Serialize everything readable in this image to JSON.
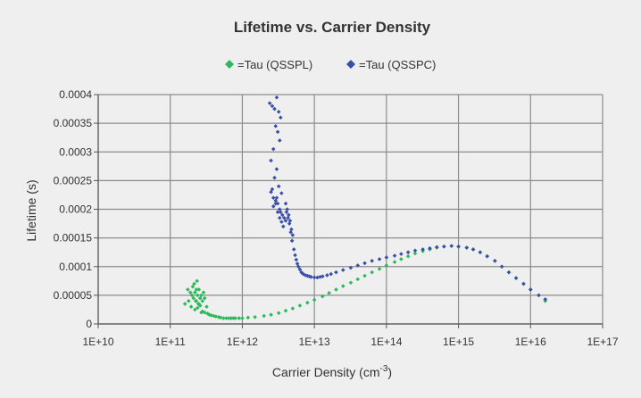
{
  "chart_data": {
    "type": "scatter",
    "title": "Lifetime vs. Carrier Density",
    "xlabel": "Carrier Density (cm",
    "xlabel_sup": "-3",
    "xlabel_close": ")",
    "ylabel": "Lifetime (s)",
    "xscale": "log",
    "xlim": [
      10000000000.0,
      1e+17
    ],
    "ylim": [
      0,
      0.0004
    ],
    "grid": true,
    "legend_placement": "top-center",
    "x_tick_labels": [
      "1E+10",
      "1E+11",
      "1E+12",
      "1E+13",
      "1E+14",
      "1E+15",
      "1E+16",
      "1E+17"
    ],
    "y_tick_labels": [
      "0",
      "0.00005",
      "0.0001",
      "0.00015",
      "0.0002",
      "0.00025",
      "0.0003",
      "0.00035",
      "0.0004"
    ],
    "series": [
      {
        "name": "=Tau (QSSPL)",
        "color": "#2db85c",
        "marker": "diamond",
        "x": [
          160000000000.0,
          175000000000.0,
          180000000000.0,
          190000000000.0,
          195000000000.0,
          200000000000.0,
          205000000000.0,
          210000000000.0,
          215000000000.0,
          220000000000.0,
          225000000000.0,
          230000000000.0,
          235000000000.0,
          240000000000.0,
          245000000000.0,
          250000000000.0,
          260000000000.0,
          270000000000.0,
          280000000000.0,
          290000000000.0,
          300000000000.0,
          220000000000.0,
          240000000000.0,
          260000000000.0,
          280000000000.0,
          300000000000.0,
          320000000000.0,
          230000000000.0,
          250000000000.0,
          270000000000.0,
          330000000000.0,
          350000000000.0,
          370000000000.0,
          400000000000.0,
          430000000000.0,
          470000000000.0,
          500000000000.0,
          550000000000.0,
          600000000000.0,
          650000000000.0,
          700000000000.0,
          750000000000.0,
          800000000000.0,
          900000000000.0,
          1000000000000.0,
          1200000000000.0,
          1500000000000.0,
          2000000000000.0,
          2500000000000.0,
          3200000000000.0,
          4000000000000.0,
          5000000000000.0,
          6300000000000.0,
          8000000000000.0,
          10000000000000.0,
          13000000000000.0,
          16000000000000.0,
          20000000000000.0,
          25000000000000.0,
          32000000000000.0,
          40000000000000.0,
          50000000000000.0,
          63000000000000.0,
          80000000000000.0,
          100000000000000.0,
          130000000000000.0,
          160000000000000.0,
          200000000000000.0,
          250000000000000.0,
          320000000000000.0,
          400000000000000.0,
          500000000000000.0,
          630000000000000.0,
          800000000000000.0,
          1000000000000000.0,
          1300000000000000.0,
          1600000000000000.0,
          2000000000000000.0,
          2500000000000000.0,
          3200000000000000.0,
          4000000000000000.0,
          5000000000000000.0,
          6300000000000000.0,
          8000000000000000.0,
          1e+16,
          1.3e+16,
          1.6e+16
        ],
        "y": [
          3.5e-05,
          6e-05,
          4e-05,
          5.5e-05,
          3e-05,
          5e-05,
          6.5e-05,
          4.5e-05,
          7e-05,
          5.5e-05,
          4e-05,
          6e-05,
          7.5e-05,
          5e-05,
          3.5e-05,
          6e-05,
          4.5e-05,
          5e-05,
          4e-05,
          5.5e-05,
          4.5e-05,
          2.5e-05,
          2.8e-05,
          3.2e-05,
          2.2e-05,
          2e-05,
          3e-05,
          4e-05,
          3.5e-05,
          2e-05,
          1.8e-05,
          1.6e-05,
          1.5e-05,
          1.4e-05,
          1.3e-05,
          1.2e-05,
          1.1e-05,
          1e-05,
          1e-05,
          1e-05,
          1e-05,
          1e-05,
          1e-05,
          1e-05,
          1e-05,
          1.1e-05,
          1.2e-05,
          1.4e-05,
          1.6e-05,
          1.9e-05,
          2.3e-05,
          2.7e-05,
          3.2e-05,
          3.7e-05,
          4.2e-05,
          4.8e-05,
          5.4e-05,
          6e-05,
          6.6e-05,
          7.2e-05,
          7.8e-05,
          8.4e-05,
          9e-05,
          9.6e-05,
          0.000102,
          0.000108,
          0.000113,
          0.000118,
          0.000123,
          0.000127,
          0.00013,
          0.000133,
          0.000135,
          0.000136,
          0.000135,
          0.000133,
          0.00013,
          0.000125,
          0.000118,
          0.00011,
          0.0001,
          9e-05,
          8e-05,
          7e-05,
          6e-05,
          5e-05,
          4e-05
        ]
      },
      {
        "name": "=Tau (QSSPC)",
        "color": "#3a4fa8",
        "marker": "diamond",
        "x": [
          2400000000000.0,
          2600000000000.0,
          2800000000000.0,
          3000000000000.0,
          3200000000000.0,
          3400000000000.0,
          2900000000000.0,
          3100000000000.0,
          3300000000000.0,
          2700000000000.0,
          2500000000000.0,
          3000000000000.0,
          2800000000000.0,
          3200000000000.0,
          2600000000000.0,
          3500000000000.0,
          3000000000000.0,
          2900000000000.0,
          3100000000000.0,
          2700000000000.0,
          3300000000000.0,
          3400000000000.0,
          3600000000000.0,
          3800000000000.0,
          4000000000000.0,
          2500000000000.0,
          2700000000000.0,
          2900000000000.0,
          3100000000000.0,
          3300000000000.0,
          3500000000000.0,
          3700000000000.0,
          4000000000000.0,
          4200000000000.0,
          4400000000000.0,
          4600000000000.0,
          4800000000000.0,
          5000000000000.0,
          4100000000000.0,
          4300000000000.0,
          4500000000000.0,
          4700000000000.0,
          4900000000000.0,
          5200000000000.0,
          5400000000000.0,
          5600000000000.0,
          5800000000000.0,
          6000000000000.0,
          6300000000000.0,
          6600000000000.0,
          7000000000000.0,
          7500000000000.0,
          8000000000000.0,
          8500000000000.0,
          9000000000000.0,
          10000000000000.0,
          11000000000000.0,
          12000000000000.0,
          13000000000000.0,
          15000000000000.0,
          17000000000000.0,
          20000000000000.0,
          25000000000000.0,
          32000000000000.0,
          40000000000000.0,
          50000000000000.0,
          63000000000000.0,
          80000000000000.0,
          100000000000000.0,
          130000000000000.0,
          160000000000000.0,
          200000000000000.0,
          250000000000000.0,
          320000000000000.0,
          400000000000000.0,
          500000000000000.0,
          630000000000000.0,
          800000000000000.0,
          1000000000000000.0,
          1300000000000000.0,
          1600000000000000.0,
          2000000000000000.0,
          2500000000000000.0,
          3200000000000000.0,
          4000000000000000.0,
          5000000000000000.0,
          6300000000000000.0,
          8000000000000000.0,
          1e+16,
          1.3e+16,
          1.6e+16
        ],
        "y": [
          0.000385,
          0.00038,
          0.000375,
          0.000395,
          0.00037,
          0.00036,
          0.000345,
          0.000335,
          0.00032,
          0.000305,
          0.000285,
          0.00027,
          0.000255,
          0.00024,
          0.000235,
          0.000228,
          0.00022,
          0.000215,
          0.00021,
          0.000205,
          0.0002,
          0.000195,
          0.00019,
          0.000185,
          0.00018,
          0.00023,
          0.00022,
          0.00021,
          0.000195,
          0.000185,
          0.000178,
          0.00017,
          0.00021,
          0.0002,
          0.00019,
          0.00018,
          0.000165,
          0.000155,
          0.000195,
          0.000185,
          0.000175,
          0.00016,
          0.000145,
          0.00013,
          0.00012,
          0.000112,
          0.000105,
          0.0001,
          9.5e-05,
          9e-05,
          8.7e-05,
          8.5e-05,
          8.4e-05,
          8.3e-05,
          8.2e-05,
          8.1e-05,
          8.1e-05,
          8.2e-05,
          8.3e-05,
          8.5e-05,
          8.7e-05,
          9e-05,
          9.4e-05,
          9.8e-05,
          0.000102,
          0.000106,
          0.00011,
          0.000113,
          0.000116,
          0.000119,
          0.000122,
          0.000125,
          0.000128,
          0.00013,
          0.000132,
          0.000134,
          0.000135,
          0.000136,
          0.000135,
          0.000133,
          0.00013,
          0.000125,
          0.000118,
          0.00011,
          0.0001,
          9e-05,
          8e-05,
          7e-05,
          6e-05,
          5e-05,
          4.3e-05
        ]
      }
    ]
  }
}
